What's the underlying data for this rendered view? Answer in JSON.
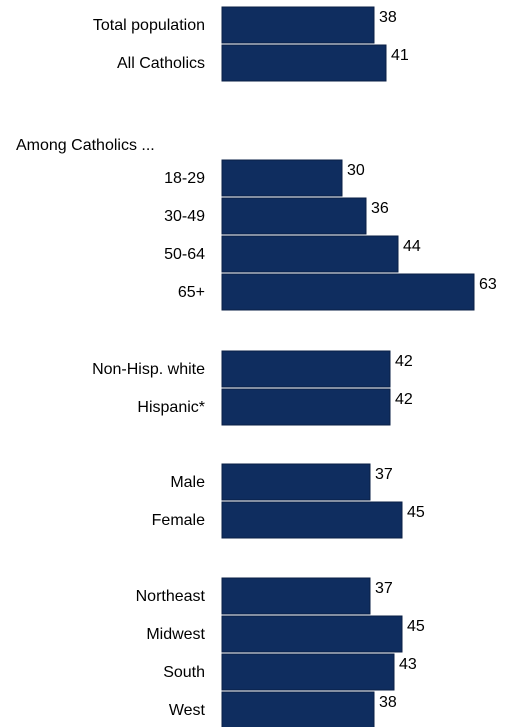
{
  "chart_data": {
    "type": "bar",
    "orientation": "horizontal",
    "bar_color": "#0f2d5f",
    "groups": [
      {
        "heading": "",
        "categories": [
          "Total population",
          "All Catholics"
        ],
        "values": [
          38,
          41
        ]
      },
      {
        "heading": "Among Catholics ...",
        "categories": [
          "18-29",
          "30-49",
          "50-64",
          "65+"
        ],
        "values": [
          30,
          36,
          44,
          63
        ]
      },
      {
        "heading": "",
        "categories": [
          "Non-Hisp. white",
          "Hispanic*"
        ],
        "values": [
          42,
          42
        ]
      },
      {
        "heading": "",
        "categories": [
          "Male",
          "Female"
        ],
        "values": [
          37,
          45
        ]
      },
      {
        "heading": "",
        "categories": [
          "Northeast",
          "Midwest",
          "South",
          "West"
        ],
        "values": [
          37,
          45,
          43,
          38
        ]
      }
    ]
  }
}
